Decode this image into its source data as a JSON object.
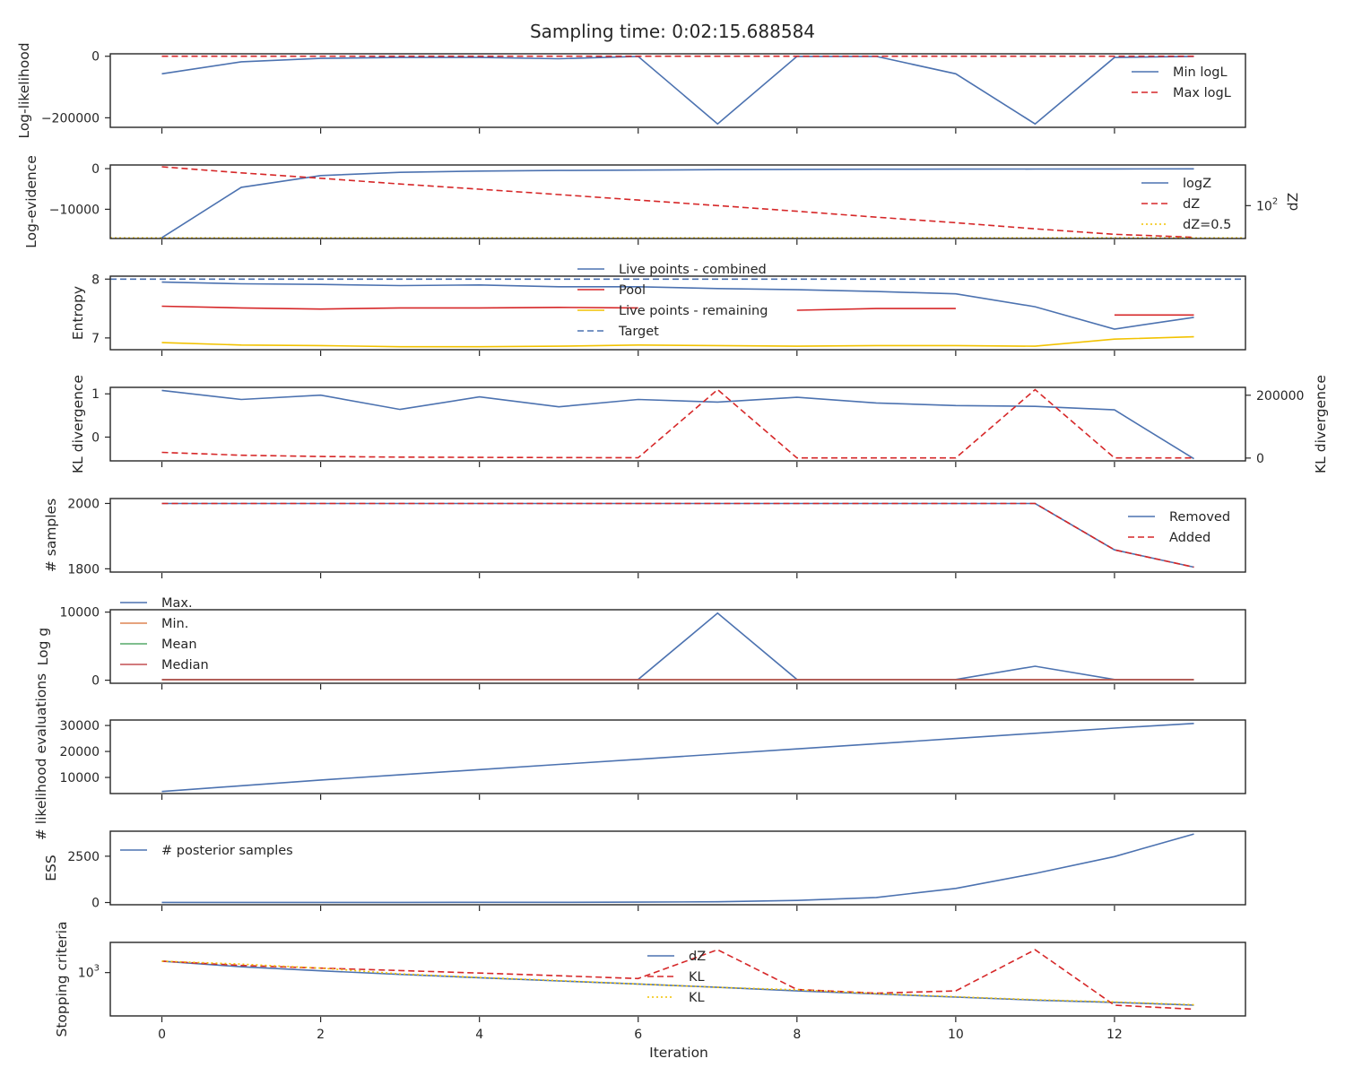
{
  "figure": {
    "title": "Sampling time: 0:02:15.688584",
    "xlabel": "Iteration",
    "x_ticks": [
      0,
      2,
      4,
      6,
      8,
      10,
      12
    ]
  },
  "chart_data": [
    {
      "type": "line",
      "ylabel": "Log-likelihood",
      "x": [
        0,
        1,
        2,
        3,
        4,
        5,
        6,
        7,
        8,
        9,
        10,
        11,
        12,
        13
      ],
      "ylim": [
        -231000,
        8000
      ],
      "y_ticks": [
        {
          "v": 0,
          "label": "0"
        },
        {
          "v": -200000,
          "label": "−200000"
        }
      ],
      "legend_position": "right",
      "series": [
        {
          "name": "Min logL",
          "color": "#4c72b0",
          "dash": "solid",
          "values": [
            -57000,
            -18000,
            -7000,
            -4000,
            -4000,
            -8000,
            -500,
            -220000,
            -500,
            -500,
            -57000,
            -220000,
            -4000,
            -500
          ]
        },
        {
          "name": "Max logL",
          "color": "#d62728",
          "dash": "dashed",
          "values": [
            0,
            0,
            0,
            0,
            0,
            0,
            0,
            0,
            0,
            0,
            0,
            0,
            0,
            0
          ]
        }
      ]
    },
    {
      "type": "line",
      "ylabel": "Log-evidence",
      "ylabel_right": "dZ",
      "x": [
        0,
        1,
        2,
        3,
        4,
        5,
        6,
        7,
        8,
        9,
        10,
        11,
        12,
        13
      ],
      "ylim": [
        -17200,
        900
      ],
      "y_ticks": [
        {
          "v": 0,
          "label": "0"
        },
        {
          "v": -10000,
          "label": "−10000"
        }
      ],
      "y2_scale": "log",
      "y2lim": [
        0.45,
        80000
      ],
      "y2_ticks": [
        {
          "v": 100,
          "label": "10",
          "sup": "2"
        }
      ],
      "legend_position": "right",
      "series": [
        {
          "name": "logZ",
          "color": "#4c72b0",
          "dash": "solid",
          "axis": "left",
          "values": [
            -17000,
            -4600,
            -1700,
            -900,
            -600,
            -450,
            -350,
            -250,
            -180,
            -140,
            -110,
            -90,
            -70,
            -60
          ]
        },
        {
          "name": "dZ",
          "color": "#d62728",
          "dash": "dashed",
          "axis": "right",
          "values": [
            60000,
            22000,
            9000,
            3500,
            1500,
            620,
            250,
            100,
            40,
            15,
            6,
            2.2,
            0.9,
            0.55
          ]
        },
        {
          "name": "dZ=0.5",
          "color": "#f2c200",
          "dash": "dotted",
          "axis": "right",
          "hline": 0.5
        }
      ]
    },
    {
      "type": "line",
      "ylabel": "Entropy",
      "x": [
        0,
        1,
        2,
        3,
        4,
        5,
        6,
        7,
        8,
        9,
        10,
        11,
        12,
        13
      ],
      "ylim": [
        6.8,
        8.05
      ],
      "y_ticks": [
        {
          "v": 8,
          "label": "8"
        },
        {
          "v": 7,
          "label": "7"
        }
      ],
      "legend_position": "upper center",
      "series": [
        {
          "name": "Live points - combined",
          "color": "#4c72b0",
          "dash": "solid",
          "values": [
            7.95,
            7.92,
            7.91,
            7.89,
            7.9,
            7.87,
            7.87,
            7.84,
            7.82,
            7.79,
            7.75,
            7.53,
            7.15,
            7.35
          ]
        },
        {
          "name": "Pool",
          "color": "#d62728",
          "dash": "solid",
          "values": [
            7.54,
            7.51,
            7.49,
            7.51,
            7.51,
            7.52,
            7.51,
            null,
            7.47,
            7.5,
            7.5,
            null,
            7.39,
            7.39
          ]
        },
        {
          "name": "Live points - remaining",
          "color": "#f2c200",
          "dash": "solid",
          "values": [
            6.92,
            6.88,
            6.87,
            6.85,
            6.85,
            6.86,
            6.88,
            6.87,
            6.86,
            6.87,
            6.87,
            6.86,
            6.98,
            7.02
          ]
        },
        {
          "name": "Target",
          "color": "#4c72b0",
          "dash": "dashed",
          "hline": 8.0
        }
      ]
    },
    {
      "type": "line",
      "ylabel": "KL divergence",
      "ylabel_right": "KL divergence",
      "x": [
        0,
        1,
        2,
        3,
        4,
        5,
        6,
        7,
        8,
        9,
        10,
        11,
        12,
        13
      ],
      "ylim": [
        -0.55,
        1.15
      ],
      "y_ticks": [
        {
          "v": 1,
          "label": "1"
        },
        {
          "v": 0,
          "label": "0"
        }
      ],
      "y2lim": [
        -9000,
        225000
      ],
      "y2_ticks": [
        {
          "v": 200000,
          "label": "200000"
        },
        {
          "v": 0,
          "label": "0"
        }
      ],
      "series": [
        {
          "name": "",
          "color": "#4c72b0",
          "dash": "solid",
          "axis": "left",
          "values": [
            1.08,
            0.87,
            0.97,
            0.64,
            0.93,
            0.7,
            0.87,
            0.81,
            0.92,
            0.79,
            0.73,
            0.71,
            0.63,
            -0.5
          ]
        },
        {
          "name": "",
          "color": "#d62728",
          "dash": "dashed",
          "axis": "right",
          "values": [
            18000,
            9000,
            5000,
            3000,
            2000,
            1500,
            1000,
            218000,
            500,
            500,
            500,
            218000,
            500,
            500
          ]
        }
      ]
    },
    {
      "type": "line",
      "ylabel": "# samples",
      "x": [
        0,
        1,
        2,
        3,
        4,
        5,
        6,
        7,
        8,
        9,
        10,
        11,
        12,
        13
      ],
      "ylim": [
        1790,
        2015
      ],
      "y_ticks": [
        {
          "v": 2000,
          "label": "2000"
        },
        {
          "v": 1800,
          "label": "1800"
        }
      ],
      "legend_position": "right",
      "series": [
        {
          "name": "Removed",
          "color": "#4c72b0",
          "dash": "solid",
          "values": [
            2000,
            2000,
            2000,
            2000,
            2000,
            2000,
            2000,
            2000,
            2000,
            2000,
            2000,
            2000,
            1858,
            1805
          ]
        },
        {
          "name": "Added",
          "color": "#d62728",
          "dash": "dashed",
          "values": [
            2000,
            2000,
            2000,
            2000,
            2000,
            2000,
            2000,
            2000,
            2000,
            2000,
            2000,
            2000,
            1858,
            1805
          ]
        }
      ]
    },
    {
      "type": "line",
      "ylabel": "Log g",
      "x": [
        0,
        1,
        2,
        3,
        4,
        5,
        6,
        7,
        8,
        9,
        10,
        11,
        12,
        13
      ],
      "ylim": [
        -450,
        10350
      ],
      "y_ticks": [
        {
          "v": 10000,
          "label": "10000"
        },
        {
          "v": 0,
          "label": "0"
        }
      ],
      "legend_position": "upper left",
      "series": [
        {
          "name": "Max.",
          "color": "#4c72b0",
          "dash": "solid",
          "values": [
            100,
            100,
            100,
            100,
            100,
            100,
            100,
            9850,
            100,
            100,
            100,
            2050,
            100,
            100
          ]
        },
        {
          "name": "Min.",
          "color": "#dd8452",
          "dash": "solid",
          "values": [
            60,
            60,
            60,
            60,
            60,
            60,
            60,
            60,
            60,
            60,
            60,
            60,
            60,
            60
          ]
        },
        {
          "name": "Mean",
          "color": "#55a868",
          "dash": "solid",
          "values": [
            80,
            80,
            80,
            80,
            80,
            80,
            80,
            80,
            80,
            80,
            80,
            80,
            80,
            80
          ]
        },
        {
          "name": "Median",
          "color": "#c44e52",
          "dash": "solid",
          "values": [
            80,
            80,
            80,
            80,
            80,
            80,
            80,
            80,
            80,
            80,
            80,
            80,
            80,
            80
          ]
        }
      ]
    },
    {
      "type": "line",
      "ylabel": "# likelihood evaluations",
      "x": [
        0,
        1,
        2,
        3,
        4,
        5,
        6,
        7,
        8,
        9,
        10,
        11,
        12,
        13
      ],
      "ylim": [
        3800,
        32100
      ],
      "y_ticks": [
        {
          "v": 30000,
          "label": "30000"
        },
        {
          "v": 20000,
          "label": "20000"
        },
        {
          "v": 10000,
          "label": "10000"
        }
      ],
      "series": [
        {
          "name": "",
          "color": "#4c72b0",
          "dash": "solid",
          "values": [
            4600,
            6800,
            9000,
            11000,
            13000,
            15000,
            17000,
            19000,
            21000,
            23000,
            25000,
            27000,
            29000,
            30800
          ]
        }
      ]
    },
    {
      "type": "line",
      "ylabel": "ESS",
      "x": [
        0,
        1,
        2,
        3,
        4,
        5,
        6,
        7,
        8,
        9,
        10,
        11,
        12,
        13
      ],
      "ylim": [
        -120,
        3850
      ],
      "y_ticks": [
        {
          "v": 2500,
          "label": "2500"
        },
        {
          "v": 0,
          "label": "0"
        }
      ],
      "legend_position": "upper left",
      "series": [
        {
          "name": "# posterior samples",
          "color": "#4c72b0",
          "dash": "solid",
          "values": [
            5,
            5,
            6,
            7,
            9,
            12,
            18,
            40,
            110,
            270,
            760,
            1570,
            2480,
            3700
          ]
        }
      ]
    },
    {
      "type": "line",
      "ylabel": "Stopping criteria",
      "x": [
        0,
        1,
        2,
        3,
        4,
        5,
        6,
        7,
        8,
        9,
        10,
        11,
        12,
        13
      ],
      "yscale": "log",
      "ylim": [
        430,
        1800
      ],
      "y_ticks": [
        {
          "v": 1000,
          "label": "10",
          "sup": "3"
        }
      ],
      "legend_position": "upper center",
      "series": [
        {
          "name": "dZ",
          "color": "#4c72b0",
          "dash": "solid",
          "values": [
            1250,
            1120,
            1035,
            965,
            905,
            850,
            800,
            750,
            700,
            660,
            620,
            585,
            560,
            530
          ]
        },
        {
          "name": "KL",
          "color": "#d62728",
          "dash": "dashed",
          "values": [
            1250,
            1150,
            1090,
            1040,
            990,
            940,
            890,
            1560,
            720,
            670,
            700,
            1560,
            530,
            490
          ]
        },
        {
          "name": "KL",
          "color": "#f2c200",
          "dash": "dotted",
          "values": [
            1250,
            1180,
            1090,
            975,
            910,
            855,
            800,
            750,
            715,
            665,
            625,
            590,
            565,
            535
          ]
        }
      ]
    }
  ]
}
